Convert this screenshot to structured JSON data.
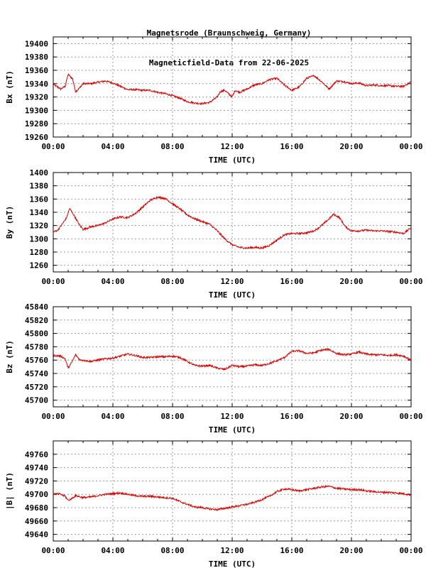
{
  "title": {
    "line1": "Magnetsrode (Braunschweig, Germany)",
    "line2": "Magneticfield-Data from 22-06-2025"
  },
  "colors": {
    "trace": "#dd0000",
    "grid": "#999999",
    "frame": "#000000"
  },
  "chart_data": [
    {
      "type": "line",
      "ylabel": "Bx (nT)",
      "xlabel": "TIME (UTC)",
      "xticks": [
        "00:00",
        "04:00",
        "08:00",
        "12:00",
        "16:00",
        "20:00",
        "00:00"
      ],
      "xlim": [
        0,
        24
      ],
      "ylim": [
        19260,
        19410
      ],
      "yticks": [
        19260,
        19280,
        19300,
        19320,
        19340,
        19360,
        19380,
        19400
      ],
      "grid": true,
      "series": [
        {
          "x_hours": [
            0,
            0.5,
            0.8,
            1.0,
            1.3,
            1.5,
            1.7,
            2.0,
            2.5,
            3.0,
            3.5,
            4.0,
            4.5,
            5.0,
            5.5,
            6.0,
            6.5,
            7.0,
            7.5,
            8.0,
            8.5,
            9.0,
            9.5,
            10.0,
            10.5,
            11.0,
            11.2,
            11.5,
            12.0,
            12.2,
            12.5,
            13.0,
            13.5,
            14.0,
            14.5,
            15.0,
            15.5,
            16.0,
            16.5,
            17.0,
            17.5,
            18.0,
            18.5,
            19.0,
            19.5,
            20.0,
            20.5,
            21.0,
            21.5,
            22.0,
            22.5,
            23.0,
            23.5,
            24.0
          ],
          "values": [
            19339,
            19332,
            19336,
            19354,
            19347,
            19328,
            19332,
            19340,
            19340,
            19342,
            19344,
            19341,
            19336,
            19331,
            19331,
            19330,
            19330,
            19327,
            19325,
            19322,
            19318,
            19313,
            19311,
            19310,
            19312,
            19320,
            19328,
            19330,
            19320,
            19330,
            19327,
            19332,
            19338,
            19340,
            19346,
            19348,
            19338,
            19330,
            19335,
            19348,
            19352,
            19343,
            19332,
            19344,
            19343,
            19340,
            19341,
            19337,
            19338,
            19337,
            19337,
            19336,
            19336,
            19343
          ]
        }
      ]
    },
    {
      "type": "line",
      "ylabel": "By (nT)",
      "xlabel": "TIME (UTC)",
      "xticks": [
        "00:00",
        "04:00",
        "08:00",
        "12:00",
        "16:00",
        "20:00",
        "00:00"
      ],
      "xlim": [
        0,
        24
      ],
      "ylim": [
        1250,
        1400
      ],
      "yticks": [
        1260,
        1280,
        1300,
        1320,
        1340,
        1360,
        1380,
        1400
      ],
      "grid": true,
      "series": [
        {
          "x_hours": [
            0,
            0.3,
            0.6,
            0.9,
            1.1,
            1.4,
            1.7,
            2.0,
            2.5,
            3.0,
            3.5,
            4.0,
            4.5,
            5.0,
            5.5,
            6.0,
            6.5,
            7.0,
            7.5,
            8.0,
            8.5,
            9.0,
            9.5,
            10.0,
            10.5,
            11.0,
            11.5,
            12.0,
            12.5,
            13.0,
            13.5,
            14.0,
            14.5,
            15.0,
            15.5,
            16.0,
            16.5,
            17.0,
            17.5,
            18.0,
            18.5,
            18.8,
            19.2,
            19.6,
            20.0,
            20.5,
            21.0,
            21.5,
            22.0,
            22.5,
            23.0,
            23.5,
            24.0
          ],
          "values": [
            1310,
            1313,
            1322,
            1332,
            1346,
            1335,
            1323,
            1314,
            1318,
            1320,
            1324,
            1330,
            1333,
            1332,
            1338,
            1348,
            1358,
            1363,
            1361,
            1353,
            1345,
            1336,
            1330,
            1326,
            1322,
            1312,
            1300,
            1291,
            1287,
            1286,
            1287,
            1286,
            1290,
            1298,
            1306,
            1308,
            1308,
            1309,
            1312,
            1320,
            1330,
            1337,
            1332,
            1318,
            1312,
            1312,
            1313,
            1312,
            1312,
            1311,
            1310,
            1308,
            1317
          ]
        }
      ]
    },
    {
      "type": "line",
      "ylabel": "Bz (nT)",
      "xlabel": "TIME (UTC)",
      "xticks": [
        "00:00",
        "04:00",
        "08:00",
        "12:00",
        "16:00",
        "20:00",
        "00:00"
      ],
      "xlim": [
        0,
        24
      ],
      "ylim": [
        45690,
        45840
      ],
      "yticks": [
        45700,
        45720,
        45740,
        45760,
        45780,
        45800,
        45820,
        45840
      ],
      "grid": true,
      "series": [
        {
          "x_hours": [
            0,
            0.5,
            0.8,
            1.0,
            1.2,
            1.5,
            1.8,
            2.0,
            2.5,
            3.0,
            3.5,
            4.0,
            4.5,
            5.0,
            5.5,
            6.0,
            6.5,
            7.0,
            7.5,
            8.0,
            8.5,
            9.0,
            9.5,
            10.0,
            10.5,
            11.0,
            11.5,
            12.0,
            12.5,
            13.0,
            13.5,
            14.0,
            14.5,
            15.0,
            15.5,
            16.0,
            16.5,
            17.0,
            17.5,
            18.0,
            18.5,
            19.0,
            19.5,
            20.0,
            20.5,
            21.0,
            21.5,
            22.0,
            22.5,
            23.0,
            23.5,
            24.0
          ],
          "values": [
            45767,
            45766,
            45762,
            45748,
            45755,
            45768,
            45760,
            45760,
            45758,
            45760,
            45762,
            45763,
            45766,
            45769,
            45767,
            45764,
            45764,
            45765,
            45765,
            45766,
            45764,
            45758,
            45752,
            45751,
            45752,
            45748,
            45746,
            45752,
            45750,
            45751,
            45753,
            45752,
            45755,
            45759,
            45764,
            45773,
            45774,
            45770,
            45771,
            45775,
            45776,
            45770,
            45768,
            45769,
            45772,
            45769,
            45768,
            45768,
            45767,
            45768,
            45766,
            45760
          ]
        }
      ]
    },
    {
      "type": "line",
      "ylabel": "|B| (nT)",
      "xlabel": "TIME (UTC)",
      "xticks": [
        "00:00",
        "04:00",
        "08:00",
        "12:00",
        "16:00",
        "20:00",
        "00:00"
      ],
      "xlim": [
        0,
        24
      ],
      "ylim": [
        49630,
        49780
      ],
      "yticks": [
        49640,
        49660,
        49680,
        49700,
        49720,
        49740,
        49760
      ],
      "grid": true,
      "series": [
        {
          "x_hours": [
            0,
            0.5,
            0.8,
            1.0,
            1.2,
            1.5,
            2.0,
            2.5,
            3.0,
            3.5,
            4.0,
            4.5,
            5.0,
            5.5,
            6.0,
            6.5,
            7.0,
            7.5,
            8.0,
            8.5,
            9.0,
            9.5,
            10.0,
            10.5,
            11.0,
            11.5,
            12.0,
            12.5,
            13.0,
            13.5,
            14.0,
            14.5,
            15.0,
            15.5,
            16.0,
            16.5,
            17.0,
            17.5,
            18.0,
            18.5,
            19.0,
            19.5,
            20.0,
            20.5,
            21.0,
            21.5,
            22.0,
            22.5,
            23.0,
            23.5,
            24.0
          ],
          "values": [
            49701,
            49700,
            49697,
            49691,
            49693,
            49698,
            49695,
            49696,
            49698,
            49700,
            49701,
            49702,
            49700,
            49698,
            49697,
            49697,
            49696,
            49695,
            49694,
            49689,
            49685,
            49681,
            49680,
            49678,
            49677,
            49679,
            49681,
            49683,
            49685,
            49688,
            49692,
            49697,
            49704,
            49708,
            49707,
            49705,
            49707,
            49709,
            49711,
            49712,
            49709,
            49708,
            49707,
            49707,
            49705,
            49704,
            49703,
            49703,
            49702,
            49701,
            49699
          ]
        }
      ]
    }
  ]
}
